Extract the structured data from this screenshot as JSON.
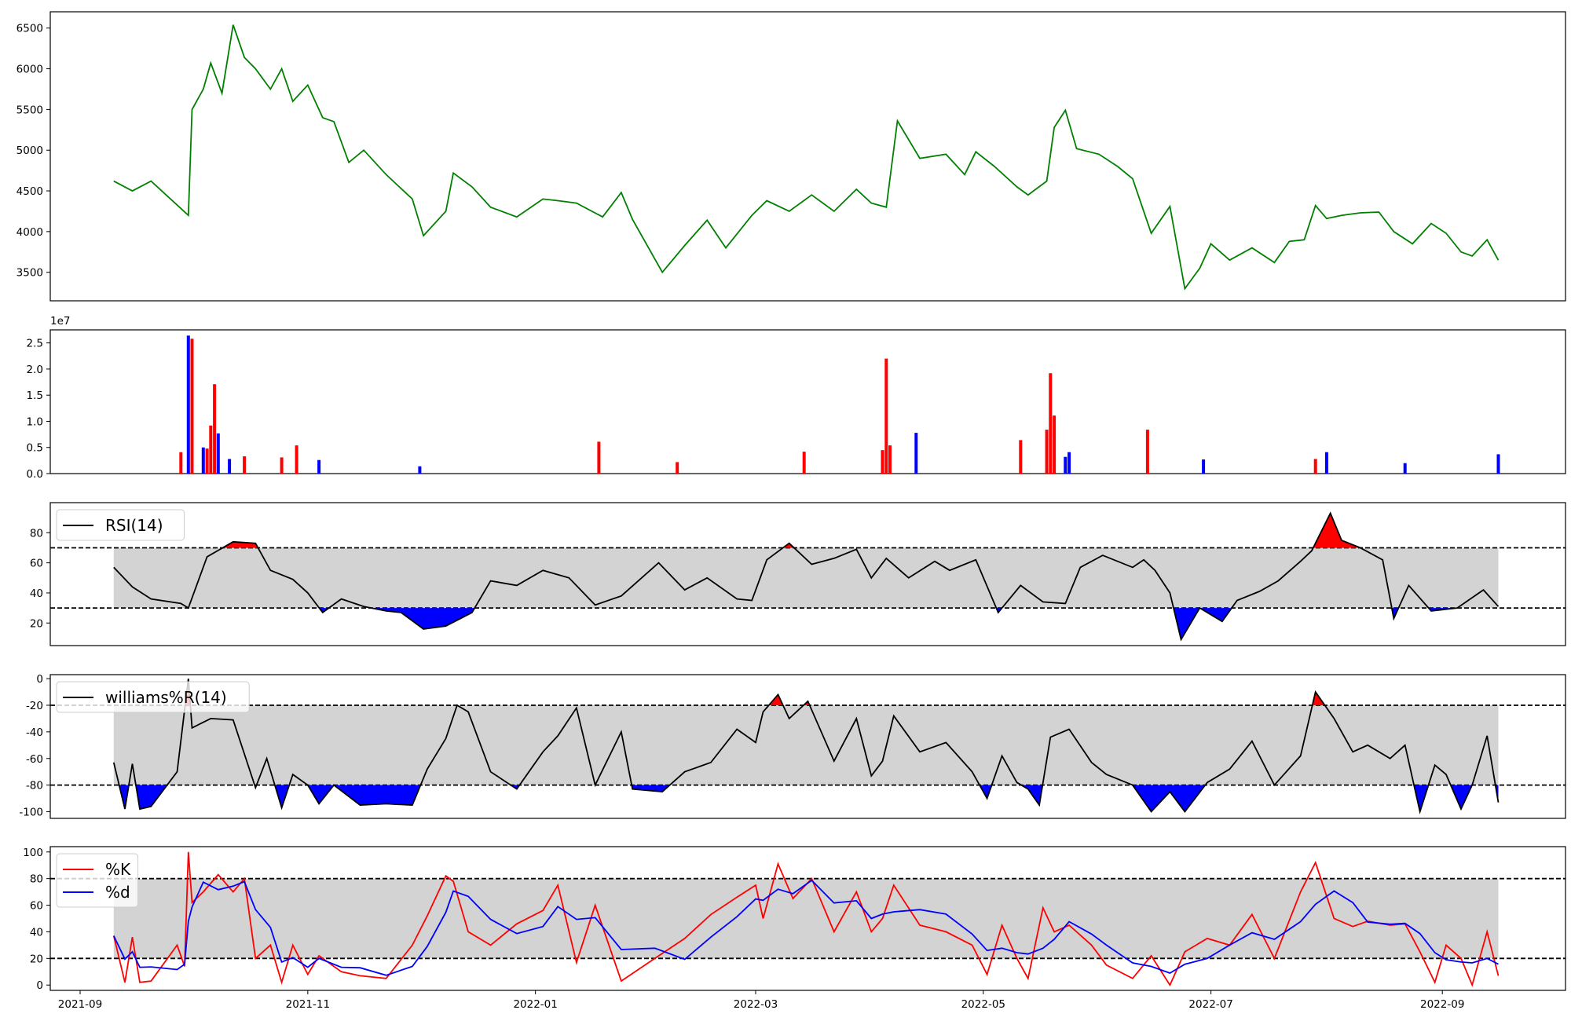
{
  "chart_data": [
    {
      "type": "line",
      "panel": "price",
      "color": "#008000",
      "ylim": [
        3150,
        6700
      ],
      "yticks": [
        3500,
        4000,
        4500,
        5000,
        5500,
        6000,
        6500
      ],
      "x": [
        "2021-09-10",
        "2021-09-15",
        "2021-09-20",
        "2021-09-30",
        "2021-10-01",
        "2021-10-04",
        "2021-10-06",
        "2021-10-09",
        "2021-10-12",
        "2021-10-15",
        "2021-10-18",
        "2021-10-22",
        "2021-10-25",
        "2021-10-28",
        "2021-11-01",
        "2021-11-05",
        "2021-11-08",
        "2021-11-12",
        "2021-11-16",
        "2021-11-22",
        "2021-11-29",
        "2021-12-02",
        "2021-12-08",
        "2021-12-10",
        "2021-12-15",
        "2021-12-20",
        "2021-12-27",
        "2022-01-03",
        "2022-01-07",
        "2022-01-12",
        "2022-01-19",
        "2022-01-24",
        "2022-01-27",
        "2022-02-04",
        "2022-02-10",
        "2022-02-16",
        "2022-02-21",
        "2022-02-28",
        "2022-03-04",
        "2022-03-10",
        "2022-03-16",
        "2022-03-22",
        "2022-03-28",
        "2022-04-01",
        "2022-04-05",
        "2022-04-08",
        "2022-04-14",
        "2022-04-21",
        "2022-04-26",
        "2022-04-29",
        "2022-05-04",
        "2022-05-10",
        "2022-05-13",
        "2022-05-18",
        "2022-05-20",
        "2022-05-23",
        "2022-05-26",
        "2022-06-01",
        "2022-06-06",
        "2022-06-10",
        "2022-06-15",
        "2022-06-20",
        "2022-06-24",
        "2022-06-28",
        "2022-07-01",
        "2022-07-06",
        "2022-07-12",
        "2022-07-18",
        "2022-07-22",
        "2022-07-26",
        "2022-07-29",
        "2022-08-01",
        "2022-08-05",
        "2022-08-10",
        "2022-08-15",
        "2022-08-19",
        "2022-08-24",
        "2022-08-29",
        "2022-09-02",
        "2022-09-06",
        "2022-09-09",
        "2022-09-13",
        "2022-09-16"
      ],
      "values": [
        4620,
        4500,
        4620,
        4200,
        5500,
        5750,
        6070,
        5700,
        6540,
        6140,
        6000,
        5750,
        6000,
        5600,
        5800,
        5400,
        5350,
        4850,
        5000,
        4700,
        4400,
        3950,
        4250,
        4720,
        4550,
        4300,
        4180,
        4400,
        4380,
        4350,
        4180,
        4480,
        4150,
        3500,
        3830,
        4140,
        3800,
        4200,
        4380,
        4250,
        4450,
        4250,
        4520,
        4350,
        4300,
        5360,
        4900,
        4950,
        4700,
        4980,
        4800,
        4550,
        4450,
        4620,
        5280,
        5490,
        5020,
        4950,
        4800,
        4650,
        3980,
        4310,
        3300,
        3550,
        3850,
        3650,
        3800,
        3620,
        3880,
        3900,
        4320,
        4160,
        4200,
        4230,
        4240,
        4000,
        3850,
        4100,
        3980,
        3750,
        3700,
        3900,
        3650
      ]
    },
    {
      "type": "bar",
      "panel": "volume",
      "ylim": [
        0,
        27500000
      ],
      "yticks": [
        0,
        5000000,
        10000000,
        15000000,
        20000000,
        25000000
      ],
      "ytick_labels": [
        "0.0",
        "0.5",
        "1.0",
        "1.5",
        "2.0",
        "2.5"
      ],
      "offset_label": "1e7",
      "up_color": "#ff0000",
      "down_color": "#0000ff",
      "x": [
        "2021-09-28",
        "2021-09-30",
        "2021-10-01",
        "2021-10-04",
        "2021-10-05",
        "2021-10-06",
        "2021-10-07",
        "2021-10-08",
        "2021-10-11",
        "2021-10-15",
        "2021-10-25",
        "2021-10-29",
        "2021-11-04",
        "2021-12-01",
        "2022-01-18",
        "2022-02-08",
        "2022-03-14",
        "2022-04-04",
        "2022-04-05",
        "2022-04-06",
        "2022-04-13",
        "2022-05-11",
        "2022-05-18",
        "2022-05-19",
        "2022-05-20",
        "2022-05-23",
        "2022-05-24",
        "2022-06-14",
        "2022-06-29",
        "2022-07-29",
        "2022-08-01",
        "2022-08-22",
        "2022-09-16"
      ],
      "values": [
        4100000,
        26400000,
        25800000,
        5000000,
        4800000,
        9200000,
        17100000,
        7700000,
        2800000,
        3300000,
        3100000,
        5400000,
        2600000,
        1400000,
        6100000,
        2200000,
        4200000,
        4500000,
        22000000,
        5400000,
        7800000,
        6400000,
        8400000,
        19200000,
        11100000,
        3200000,
        4100000,
        8400000,
        2700000,
        2800000,
        4100000,
        2000000,
        3700000
      ],
      "direction": [
        "up",
        "down",
        "up",
        "down",
        "up",
        "up",
        "up",
        "down",
        "down",
        "up",
        "up",
        "up",
        "down",
        "down",
        "up",
        "up",
        "up",
        "up",
        "up",
        "up",
        "down",
        "up",
        "up",
        "up",
        "up",
        "down",
        "down",
        "up",
        "down",
        "up",
        "down",
        "down",
        "down"
      ]
    },
    {
      "type": "line",
      "panel": "rsi",
      "series": [
        {
          "name": "RSI(14)",
          "color": "#000000"
        }
      ],
      "ylim": [
        5,
        100
      ],
      "yticks": [
        20,
        40,
        60,
        80
      ],
      "thresholds": [
        30,
        70
      ],
      "band": [
        30,
        70
      ],
      "overbought_fill": "#ff0000",
      "oversold_fill": "#0000ff",
      "x": [
        "2021-09-10",
        "2021-09-15",
        "2021-09-20",
        "2021-09-28",
        "2021-09-30",
        "2021-10-05",
        "2021-10-12",
        "2021-10-18",
        "2021-10-22",
        "2021-10-28",
        "2021-11-01",
        "2021-11-05",
        "2021-11-10",
        "2021-11-16",
        "2021-11-22",
        "2021-11-26",
        "2021-12-02",
        "2021-12-08",
        "2021-12-15",
        "2021-12-20",
        "2021-12-27",
        "2022-01-03",
        "2022-01-10",
        "2022-01-17",
        "2022-01-24",
        "2022-02-03",
        "2022-02-10",
        "2022-02-16",
        "2022-02-24",
        "2022-02-28",
        "2022-03-04",
        "2022-03-10",
        "2022-03-16",
        "2022-03-22",
        "2022-03-28",
        "2022-04-01",
        "2022-04-05",
        "2022-04-11",
        "2022-04-18",
        "2022-04-22",
        "2022-04-29",
        "2022-05-05",
        "2022-05-11",
        "2022-05-17",
        "2022-05-23",
        "2022-05-27",
        "2022-06-02",
        "2022-06-10",
        "2022-06-13",
        "2022-06-16",
        "2022-06-20",
        "2022-06-23",
        "2022-06-28",
        "2022-07-04",
        "2022-07-08",
        "2022-07-14",
        "2022-07-19",
        "2022-07-25",
        "2022-07-28",
        "2022-08-02",
        "2022-08-05",
        "2022-08-10",
        "2022-08-16",
        "2022-08-19",
        "2022-08-23",
        "2022-08-29",
        "2022-09-05",
        "2022-09-12",
        "2022-09-16"
      ],
      "values": [
        57,
        44,
        36,
        33,
        30,
        64,
        74,
        73,
        55,
        49,
        40,
        27,
        36,
        31,
        28,
        27,
        16,
        18,
        27,
        48,
        45,
        55,
        50,
        32,
        38,
        60,
        42,
        50,
        36,
        35,
        62,
        73,
        59,
        63,
        69,
        50,
        63,
        50,
        61,
        55,
        62,
        27,
        45,
        34,
        33,
        57,
        65,
        57,
        62,
        55,
        40,
        9,
        30,
        21,
        35,
        41,
        48,
        61,
        68,
        93,
        75,
        70,
        62,
        23,
        45,
        28,
        30,
        42,
        31
      ]
    },
    {
      "type": "line",
      "panel": "williams",
      "series": [
        {
          "name": "williams%R(14)",
          "color": "#000000"
        }
      ],
      "ylim": [
        -105,
        3
      ],
      "yticks": [
        -100,
        -80,
        -60,
        -40,
        -20,
        0
      ],
      "thresholds": [
        -20,
        -80
      ],
      "band": [
        -80,
        -20
      ],
      "overbought_fill": "#ff0000",
      "oversold_fill": "#0000ff",
      "x": [
        "2021-09-10",
        "2021-09-13",
        "2021-09-15",
        "2021-09-17",
        "2021-09-20",
        "2021-09-27",
        "2021-09-30",
        "2021-10-01",
        "2021-10-06",
        "2021-10-12",
        "2021-10-18",
        "2021-10-21",
        "2021-10-25",
        "2021-10-28",
        "2021-11-01",
        "2021-11-04",
        "2021-11-08",
        "2021-11-15",
        "2021-11-22",
        "2021-11-29",
        "2021-12-03",
        "2021-12-08",
        "2021-12-11",
        "2021-12-14",
        "2021-12-20",
        "2021-12-27",
        "2022-01-03",
        "2022-01-07",
        "2022-01-12",
        "2022-01-17",
        "2022-01-24",
        "2022-01-27",
        "2022-02-04",
        "2022-02-10",
        "2022-02-17",
        "2022-02-24",
        "2022-03-01",
        "2022-03-03",
        "2022-03-07",
        "2022-03-10",
        "2022-03-15",
        "2022-03-22",
        "2022-03-28",
        "2022-04-01",
        "2022-04-04",
        "2022-04-07",
        "2022-04-14",
        "2022-04-21",
        "2022-04-28",
        "2022-05-02",
        "2022-05-06",
        "2022-05-10",
        "2022-05-13",
        "2022-05-16",
        "2022-05-19",
        "2022-05-24",
        "2022-05-30",
        "2022-06-03",
        "2022-06-10",
        "2022-06-15",
        "2022-06-20",
        "2022-06-24",
        "2022-06-30",
        "2022-07-06",
        "2022-07-12",
        "2022-07-18",
        "2022-07-25",
        "2022-07-29",
        "2022-08-03",
        "2022-08-08",
        "2022-08-12",
        "2022-08-18",
        "2022-08-22",
        "2022-08-26",
        "2022-08-30",
        "2022-09-02",
        "2022-09-06",
        "2022-09-09",
        "2022-09-13",
        "2022-09-16"
      ],
      "values": [
        -63,
        -98,
        -64,
        -98,
        -96,
        -70,
        0,
        -37,
        -30,
        -31,
        -82,
        -60,
        -97,
        -72,
        -80,
        -94,
        -80,
        -95,
        -94,
        -95,
        -68,
        -45,
        -20,
        -25,
        -70,
        -83,
        -55,
        -43,
        -22,
        -80,
        -40,
        -83,
        -85,
        -70,
        -63,
        -38,
        -48,
        -25,
        -12,
        -30,
        -17,
        -62,
        -30,
        -73,
        -62,
        -28,
        -55,
        -48,
        -70,
        -90,
        -58,
        -78,
        -83,
        -95,
        -44,
        -38,
        -63,
        -72,
        -80,
        -100,
        -85,
        -100,
        -78,
        -68,
        -47,
        -80,
        -58,
        -10,
        -30,
        -55,
        -50,
        -60,
        -50,
        -100,
        -65,
        -72,
        -98,
        -80,
        -43,
        -93
      ]
    },
    {
      "type": "line",
      "panel": "stochastic",
      "series": [
        {
          "name": "%K",
          "color": "#ff0000"
        },
        {
          "name": "%d",
          "color": "#0000ff"
        }
      ],
      "ylim": [
        -4,
        104
      ],
      "yticks": [
        0,
        20,
        40,
        60,
        80,
        100
      ],
      "thresholds": [
        20,
        80
      ],
      "band": [
        20,
        80
      ],
      "x": [
        "2021-09-01",
        "2021-09-10",
        "2021-10-01",
        "2021-11-01",
        "2021-12-01",
        "2022-01-01",
        "2022-02-01",
        "2022-03-01",
        "2022-04-01",
        "2022-05-01",
        "2022-06-01",
        "2022-07-01",
        "2022-08-01",
        "2022-09-01",
        "2022-09-16"
      ],
      "xtick_labels": [
        "2021-09",
        "2021-11",
        "2022-01",
        "2022-03",
        "2022-05",
        "2022-07",
        "2022-09"
      ],
      "xtick_dates": [
        "2021-09-01",
        "2021-11-01",
        "2022-01-01",
        "2022-03-01",
        "2022-05-01",
        "2022-07-01",
        "2022-09-01"
      ],
      "k_x": [
        "2021-09-10",
        "2021-09-13",
        "2021-09-15",
        "2021-09-17",
        "2021-09-20",
        "2021-09-27",
        "2021-09-29",
        "2021-09-30",
        "2021-10-01",
        "2021-10-04",
        "2021-10-08",
        "2021-10-12",
        "2021-10-15",
        "2021-10-18",
        "2021-10-22",
        "2021-10-25",
        "2021-10-28",
        "2021-11-01",
        "2021-11-04",
        "2021-11-10",
        "2021-11-15",
        "2021-11-22",
        "2021-11-29",
        "2021-12-03",
        "2021-12-08",
        "2021-12-10",
        "2021-12-14",
        "2021-12-20",
        "2021-12-27",
        "2022-01-03",
        "2022-01-07",
        "2022-01-12",
        "2022-01-17",
        "2022-01-24",
        "2022-02-02",
        "2022-02-10",
        "2022-02-17",
        "2022-02-24",
        "2022-03-01",
        "2022-03-03",
        "2022-03-07",
        "2022-03-11",
        "2022-03-16",
        "2022-03-22",
        "2022-03-28",
        "2022-04-01",
        "2022-04-04",
        "2022-04-07",
        "2022-04-14",
        "2022-04-21",
        "2022-04-28",
        "2022-05-02",
        "2022-05-06",
        "2022-05-10",
        "2022-05-13",
        "2022-05-17",
        "2022-05-20",
        "2022-05-24",
        "2022-05-30",
        "2022-06-03",
        "2022-06-10",
        "2022-06-15",
        "2022-06-20",
        "2022-06-24",
        "2022-06-30",
        "2022-07-06",
        "2022-07-12",
        "2022-07-18",
        "2022-07-25",
        "2022-07-29",
        "2022-08-03",
        "2022-08-08",
        "2022-08-12",
        "2022-08-18",
        "2022-08-22",
        "2022-08-26",
        "2022-08-30",
        "2022-09-02",
        "2022-09-06",
        "2022-09-09",
        "2022-09-13",
        "2022-09-16"
      ],
      "k_values": [
        37,
        2,
        36,
        2,
        3,
        30,
        14,
        100,
        62,
        70,
        83,
        70,
        80,
        20,
        30,
        2,
        30,
        8,
        22,
        10,
        7,
        5,
        30,
        52,
        82,
        78,
        40,
        30,
        46,
        56,
        75,
        17,
        60,
        3,
        20,
        35,
        53,
        66,
        75,
        50,
        91,
        65,
        80,
        40,
        70,
        40,
        50,
        75,
        45,
        40,
        30,
        8,
        45,
        20,
        5,
        58,
        40,
        45,
        30,
        15,
        5,
        22,
        0,
        25,
        35,
        30,
        53,
        20,
        70,
        92,
        50,
        44,
        48,
        45,
        46,
        25,
        2,
        30,
        20,
        0,
        40,
        7
      ]
    }
  ]
}
